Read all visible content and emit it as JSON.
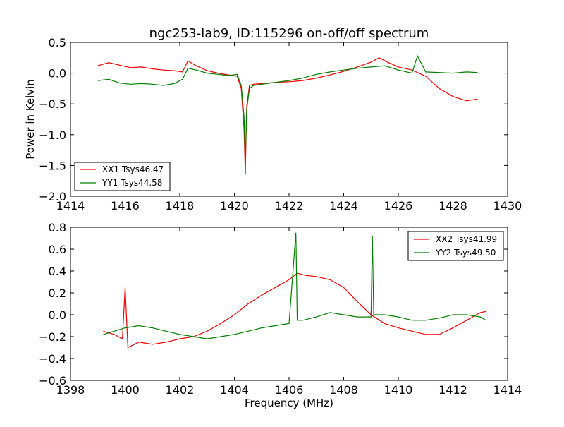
{
  "title": "ngc253-lab9, ID:115296 on-off/off spectrum",
  "colors": {
    "xx": "#ff0000",
    "yy": "#007f00"
  },
  "chart_data": [
    {
      "type": "line",
      "xlim": [
        1414,
        1430
      ],
      "ylim": [
        -2.0,
        0.5
      ],
      "xticks": [
        1414,
        1416,
        1418,
        1420,
        1422,
        1424,
        1426,
        1428,
        1430
      ],
      "yticks": [
        -2.0,
        -1.5,
        -1.0,
        -0.5,
        0.0,
        0.5
      ],
      "ylabel": "Power in Kelvin",
      "xlabel": "",
      "legend_position": "lower-left",
      "series": [
        {
          "name": "XX1 Tsys46.47",
          "color": "#ff0000",
          "x": [
            1415.0,
            1415.4,
            1415.8,
            1416.2,
            1416.6,
            1417.0,
            1417.4,
            1417.8,
            1418.1,
            1418.3,
            1418.6,
            1419.0,
            1419.4,
            1419.8,
            1420.1,
            1420.25,
            1420.35,
            1420.4,
            1420.45,
            1420.55,
            1420.7,
            1421.0,
            1421.5,
            1422.0,
            1422.5,
            1423.0,
            1423.5,
            1424.0,
            1424.5,
            1425.0,
            1425.3,
            1425.6,
            1426.0,
            1426.5,
            1427.0,
            1427.5,
            1428.0,
            1428.5,
            1428.9
          ],
          "y": [
            0.12,
            0.17,
            0.13,
            0.09,
            0.1,
            0.07,
            0.05,
            0.04,
            0.02,
            0.2,
            0.12,
            0.04,
            0.0,
            -0.03,
            -0.05,
            -0.25,
            -0.9,
            -1.65,
            -0.55,
            -0.2,
            -0.18,
            -0.17,
            -0.15,
            -0.14,
            -0.12,
            -0.08,
            -0.03,
            0.03,
            0.1,
            0.18,
            0.25,
            0.18,
            0.1,
            0.05,
            -0.05,
            -0.25,
            -0.38,
            -0.45,
            -0.42
          ]
        },
        {
          "name": "YY1 Tsys44.58",
          "color": "#007f00",
          "x": [
            1415.0,
            1415.4,
            1415.8,
            1416.2,
            1416.6,
            1417.0,
            1417.4,
            1417.8,
            1418.1,
            1418.3,
            1418.6,
            1419.0,
            1419.4,
            1419.8,
            1420.1,
            1420.25,
            1420.35,
            1420.4,
            1420.45,
            1420.55,
            1420.7,
            1421.0,
            1421.5,
            1422.0,
            1422.5,
            1423.0,
            1423.5,
            1424.0,
            1424.5,
            1425.0,
            1425.5,
            1426.0,
            1426.5,
            1426.7,
            1427.0,
            1427.5,
            1428.0,
            1428.5,
            1428.9
          ],
          "y": [
            -0.12,
            -0.1,
            -0.16,
            -0.18,
            -0.17,
            -0.18,
            -0.2,
            -0.17,
            -0.1,
            0.08,
            0.05,
            0.0,
            -0.02,
            -0.04,
            -0.02,
            -0.2,
            -0.7,
            -1.45,
            -0.6,
            -0.25,
            -0.2,
            -0.18,
            -0.15,
            -0.12,
            -0.08,
            -0.02,
            0.02,
            0.05,
            0.08,
            0.1,
            0.12,
            0.05,
            0.0,
            0.28,
            0.02,
            0.01,
            0.0,
            0.02,
            0.01
          ]
        }
      ]
    },
    {
      "type": "line",
      "xlim": [
        1398,
        1414
      ],
      "ylim": [
        -0.6,
        0.8
      ],
      "xticks": [
        1398,
        1400,
        1402,
        1404,
        1406,
        1408,
        1410,
        1412,
        1414
      ],
      "yticks": [
        -0.6,
        -0.4,
        -0.2,
        0.0,
        0.2,
        0.4,
        0.6,
        0.8
      ],
      "xlabel": "Frequency (MHz)",
      "ylabel": "",
      "legend_position": "upper-right",
      "series": [
        {
          "name": "XX2 Tsys41.99",
          "color": "#ff0000",
          "x": [
            1399.2,
            1399.6,
            1399.9,
            1400.0,
            1400.1,
            1400.5,
            1401.0,
            1401.5,
            1402.0,
            1402.5,
            1403.0,
            1403.5,
            1404.0,
            1404.5,
            1405.0,
            1405.5,
            1406.0,
            1406.3,
            1406.6,
            1407.0,
            1407.5,
            1408.0,
            1408.5,
            1409.0,
            1409.5,
            1410.0,
            1410.5,
            1411.0,
            1411.5,
            1412.0,
            1412.5,
            1413.0,
            1413.2
          ],
          "y": [
            -0.15,
            -0.18,
            -0.22,
            0.25,
            -0.3,
            -0.25,
            -0.27,
            -0.25,
            -0.22,
            -0.2,
            -0.15,
            -0.08,
            0.0,
            0.1,
            0.18,
            0.25,
            0.32,
            0.38,
            0.36,
            0.35,
            0.32,
            0.25,
            0.12,
            0.0,
            -0.08,
            -0.12,
            -0.15,
            -0.18,
            -0.18,
            -0.12,
            -0.05,
            0.02,
            0.03
          ]
        },
        {
          "name": "YY2 Tsys49.50",
          "color": "#007f00",
          "x": [
            1399.2,
            1399.6,
            1400.0,
            1400.5,
            1401.0,
            1401.5,
            1402.0,
            1402.5,
            1403.0,
            1403.5,
            1404.0,
            1404.5,
            1405.0,
            1405.5,
            1406.0,
            1406.25,
            1406.3,
            1406.5,
            1407.0,
            1407.5,
            1408.0,
            1408.5,
            1409.0,
            1409.05,
            1409.1,
            1409.5,
            1410.0,
            1410.5,
            1411.0,
            1411.5,
            1412.0,
            1412.5,
            1413.0,
            1413.2
          ],
          "y": [
            -0.18,
            -0.15,
            -0.12,
            -0.1,
            -0.12,
            -0.15,
            -0.18,
            -0.2,
            -0.22,
            -0.2,
            -0.18,
            -0.15,
            -0.12,
            -0.1,
            -0.08,
            0.75,
            -0.05,
            -0.05,
            -0.02,
            0.02,
            0.0,
            -0.02,
            -0.02,
            0.72,
            0.0,
            0.0,
            -0.02,
            -0.05,
            -0.05,
            -0.03,
            0.0,
            0.0,
            -0.02,
            -0.05
          ]
        }
      ]
    }
  ]
}
